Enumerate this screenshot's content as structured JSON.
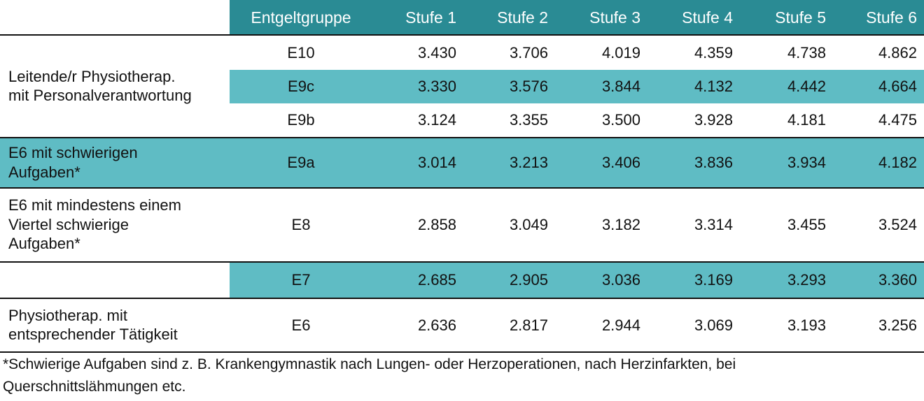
{
  "table": {
    "header": [
      "Entgeltgruppe",
      "Stufe 1",
      "Stufe 2",
      "Stufe 3",
      "Stufe 4",
      "Stufe 5",
      "Stufe 6"
    ],
    "sections": [
      {
        "label": [
          "Leitende/r Physiotherap.",
          "mit Personalverantwortung"
        ],
        "rows": [
          {
            "group": "E10",
            "values": [
              "3.430",
              "3.706",
              "4.019",
              "4.359",
              "4.738",
              "4.862"
            ]
          },
          {
            "group": "E9c",
            "values": [
              "3.330",
              "3.576",
              "3.844",
              "4.132",
              "4.442",
              "4.664"
            ]
          },
          {
            "group": "E9b",
            "values": [
              "3.124",
              "3.355",
              "3.500",
              "3.928",
              "4.181",
              "4.475"
            ]
          }
        ]
      },
      {
        "label": [
          "E6 mit schwierigen",
          "Aufgaben*"
        ],
        "rows": [
          {
            "group": "E9a",
            "values": [
              "3.014",
              "3.213",
              "3.406",
              "3.836",
              "3.934",
              "4.182"
            ]
          }
        ]
      },
      {
        "label": [
          "E6 mit mindestens einem",
          "Viertel schwierige",
          "Aufgaben*"
        ],
        "rows": [
          {
            "group": "E8",
            "values": [
              "2.858",
              "3.049",
              "3.182",
              "3.314",
              "3.455",
              "3.524"
            ]
          }
        ]
      },
      {
        "rows": [
          {
            "group": "E7",
            "values": [
              "2.685",
              "2.905",
              "3.036",
              "3.169",
              "3.293",
              "3.360"
            ]
          }
        ]
      },
      {
        "label": [
          "Physiotherap. mit",
          "entsprechender Tätigkeit"
        ],
        "rows": [
          {
            "group": "E6",
            "values": [
              "2.636",
              "2.817",
              "2.944",
              "3.069",
              "3.193",
              "3.256"
            ]
          }
        ]
      }
    ]
  },
  "footnote": [
    "*Schwierige Aufgaben sind z. B. Krankengymnastik nach Lungen- oder Herzoperationen, nach Herzinfarkten, bei",
    "Querschnittslähmungen etc."
  ]
}
